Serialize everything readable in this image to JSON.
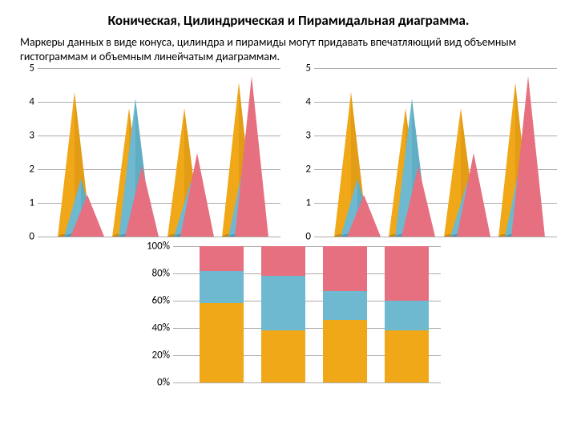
{
  "title": "Коническая, Цилиндрическая и Пирамидальная диаграмма.",
  "description": "Маркеры данных в виде конуса, цилиндра и пирамиды могут придавать впечатляющий вид объемным гистограммам и объемным линейчатым диаграммам.",
  "colors": {
    "series1": "#f0a818",
    "series1_dark": "#c88810",
    "series2": "#6eb8d0",
    "series2_dark": "#4a98b0",
    "series3": "#e67080",
    "grid": "#afabab",
    "bg": "#ffffff",
    "text": "#000000"
  },
  "cone_chart_left": {
    "ymax": 5,
    "yticks": [
      0,
      1,
      2,
      3,
      4,
      5
    ],
    "groups": [
      {
        "cones": [
          {
            "v": 4.5,
            "c": "series1"
          },
          {
            "v": 1.8,
            "c": "series2"
          },
          {
            "v": 1.3,
            "c": "series3"
          }
        ]
      },
      {
        "cones": [
          {
            "v": 4.0,
            "c": "series1"
          },
          {
            "v": 4.3,
            "c": "series2"
          },
          {
            "v": 2.2,
            "c": "series3"
          }
        ]
      },
      {
        "cones": [
          {
            "v": 4.0,
            "c": "series1"
          },
          {
            "v": 1.7,
            "c": "series2"
          },
          {
            "v": 2.6,
            "c": "series3"
          }
        ]
      },
      {
        "cones": [
          {
            "v": 4.8,
            "c": "series1"
          },
          {
            "v": 2.5,
            "c": "series2"
          },
          {
            "v": 5.0,
            "c": "series3"
          }
        ]
      }
    ]
  },
  "cone_chart_right": {
    "ymax": 5,
    "yticks": [
      0,
      1,
      2,
      3,
      4,
      5
    ],
    "groups": [
      {
        "cones": [
          {
            "v": 4.5,
            "c": "series1"
          },
          {
            "v": 1.8,
            "c": "series2"
          },
          {
            "v": 1.3,
            "c": "series3"
          }
        ]
      },
      {
        "cones": [
          {
            "v": 4.0,
            "c": "series1"
          },
          {
            "v": 4.3,
            "c": "series2"
          },
          {
            "v": 2.2,
            "c": "series3"
          }
        ]
      },
      {
        "cones": [
          {
            "v": 4.0,
            "c": "series1"
          },
          {
            "v": 1.7,
            "c": "series2"
          },
          {
            "v": 2.6,
            "c": "series3"
          }
        ]
      },
      {
        "cones": [
          {
            "v": 4.8,
            "c": "series1"
          },
          {
            "v": 2.5,
            "c": "series2"
          },
          {
            "v": 5.0,
            "c": "series3"
          }
        ]
      }
    ]
  },
  "stacked_chart": {
    "yticks": [
      "0%",
      "20%",
      "40%",
      "60%",
      "80%",
      "100%"
    ],
    "bars": [
      {
        "segs": [
          {
            "p": 58,
            "c": "series1"
          },
          {
            "p": 24,
            "c": "series2"
          },
          {
            "p": 18,
            "c": "series3"
          }
        ]
      },
      {
        "segs": [
          {
            "p": 38,
            "c": "series1"
          },
          {
            "p": 40,
            "c": "series2"
          },
          {
            "p": 22,
            "c": "series3"
          }
        ]
      },
      {
        "segs": [
          {
            "p": 46,
            "c": "series1"
          },
          {
            "p": 21,
            "c": "series2"
          },
          {
            "p": 33,
            "c": "series3"
          }
        ]
      },
      {
        "segs": [
          {
            "p": 38,
            "c": "series1"
          },
          {
            "p": 22,
            "c": "series2"
          },
          {
            "p": 40,
            "c": "series3"
          }
        ]
      }
    ]
  }
}
